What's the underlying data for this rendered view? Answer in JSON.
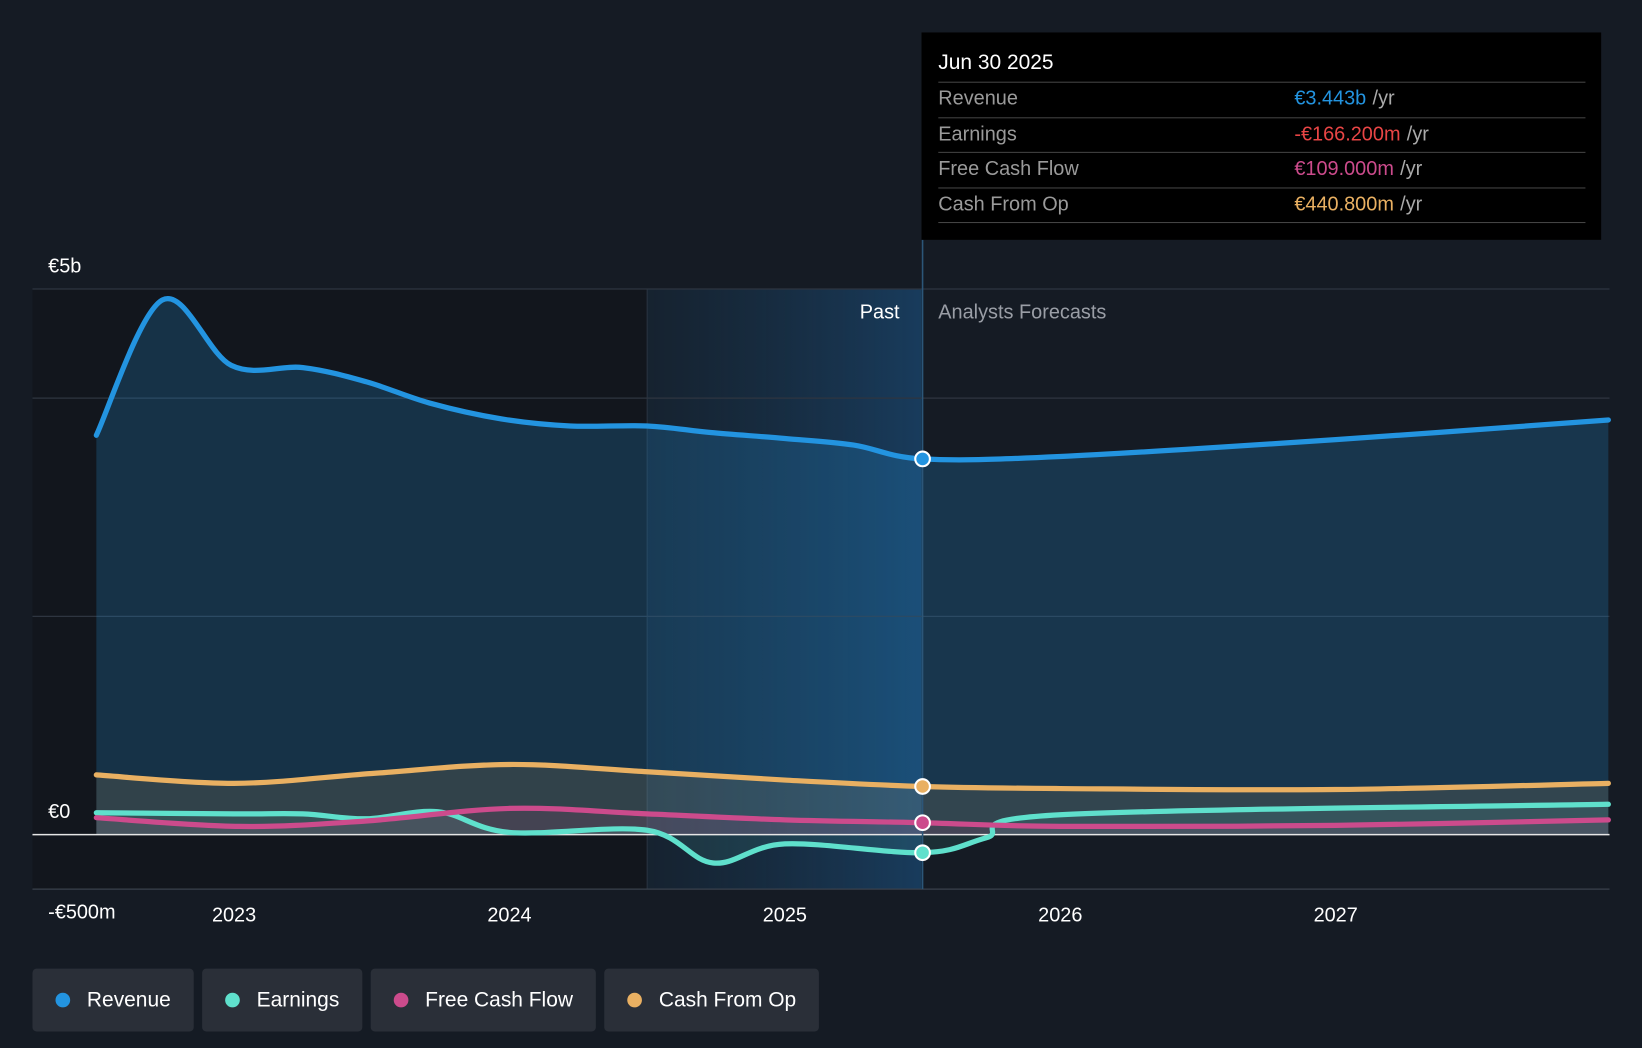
{
  "tooltip": {
    "date": "Jun 30 2025",
    "unit": "/yr",
    "rows": [
      {
        "label": "Revenue",
        "value": "€3.443b",
        "color": "#2394e0"
      },
      {
        "label": "Earnings",
        "value": "-€166.200m",
        "color": "#e84545"
      },
      {
        "label": "Free Cash Flow",
        "value": "€109.000m",
        "color": "#cc4b8c"
      },
      {
        "label": "Cash From Op",
        "value": "€440.800m",
        "color": "#e9b062"
      }
    ]
  },
  "labels": {
    "past": "Past",
    "forecast": "Analysts Forecasts"
  },
  "legend": [
    {
      "label": "Revenue",
      "color": "#2394e0"
    },
    {
      "label": "Earnings",
      "color": "#5fe0cc"
    },
    {
      "label": "Free Cash Flow",
      "color": "#cc4b8c"
    },
    {
      "label": "Cash From Op",
      "color": "#e9b062"
    }
  ],
  "chart_data": {
    "type": "line",
    "yunit": "€m",
    "ylim": [
      -500,
      5000
    ],
    "xlim": [
      2022.5,
      2028
    ],
    "ytick_labels": [
      {
        "v": 5000,
        "t": "€5b"
      },
      {
        "v": 0,
        "t": "€0"
      },
      {
        "v": -500,
        "t": "-€500m"
      }
    ],
    "xtick_labels": [
      {
        "v": 2023,
        "t": "2023"
      },
      {
        "v": 2024,
        "t": "2024"
      },
      {
        "v": 2025,
        "t": "2025"
      },
      {
        "v": 2026,
        "t": "2026"
      },
      {
        "v": 2027,
        "t": "2027"
      }
    ],
    "highlight_x": 2025.5,
    "series": [
      {
        "name": "Revenue",
        "color": "#2394e0",
        "points": [
          [
            2022.5,
            3660
          ],
          [
            2022.74,
            4900
          ],
          [
            2022.99,
            4300
          ],
          [
            2023.25,
            4280
          ],
          [
            2023.48,
            4150
          ],
          [
            2023.71,
            3955
          ],
          [
            2023.97,
            3810
          ],
          [
            2024.22,
            3745
          ],
          [
            2024.5,
            3745
          ],
          [
            2024.73,
            3685
          ],
          [
            2025.0,
            3630
          ],
          [
            2025.25,
            3570
          ],
          [
            2025.5,
            3443
          ],
          [
            2026.0,
            3465
          ],
          [
            2027.0,
            3620
          ],
          [
            2027.99,
            3800
          ]
        ]
      },
      {
        "name": "Cash From Op",
        "color": "#e9b062",
        "points": [
          [
            2022.5,
            547
          ],
          [
            2023.0,
            470
          ],
          [
            2023.5,
            560
          ],
          [
            2024.0,
            643
          ],
          [
            2024.5,
            576
          ],
          [
            2025.0,
            500
          ],
          [
            2025.5,
            441
          ],
          [
            2026.0,
            422
          ],
          [
            2027.0,
            413
          ],
          [
            2027.99,
            470
          ]
        ]
      },
      {
        "name": "Free Cash Flow",
        "color": "#cc4b8c",
        "points": [
          [
            2022.5,
            155
          ],
          [
            2023.02,
            75
          ],
          [
            2023.48,
            125
          ],
          [
            2024.0,
            240
          ],
          [
            2024.5,
            190
          ],
          [
            2025.0,
            135
          ],
          [
            2025.5,
            109
          ],
          [
            2026.0,
            75
          ],
          [
            2027.0,
            85
          ],
          [
            2027.99,
            135
          ]
        ]
      },
      {
        "name": "Earnings",
        "color": "#5fe0cc",
        "points": [
          [
            2022.5,
            200
          ],
          [
            2023.0,
            190
          ],
          [
            2023.25,
            190
          ],
          [
            2023.48,
            145
          ],
          [
            2023.74,
            210
          ],
          [
            2024.0,
            20
          ],
          [
            2024.5,
            40
          ],
          [
            2024.74,
            -260
          ],
          [
            2025.0,
            -85
          ],
          [
            2025.5,
            -166
          ],
          [
            2025.73,
            -30
          ],
          [
            2026.0,
            182
          ],
          [
            2027.99,
            278
          ]
        ]
      }
    ]
  }
}
